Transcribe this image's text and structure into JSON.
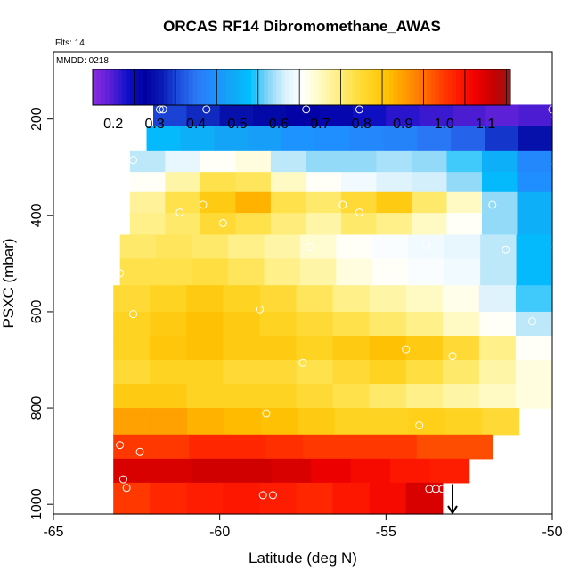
{
  "chart_data": {
    "type": "heatmap",
    "title": "ORCAS RF14 Dibromomethane_AWAS",
    "flights_note": "Flts: 14",
    "mmdd_note": "MMDD: 0218",
    "xlabel": "Latitude (deg N)",
    "ylabel": "PSXC (mbar)",
    "xlim": [
      -65,
      -50
    ],
    "ylim": [
      1020,
      60
    ],
    "x_ticks": [
      -65,
      -60,
      -55,
      -50
    ],
    "y_ticks": [
      200,
      400,
      600,
      800,
      1000
    ],
    "colorbar": {
      "range": [
        0.15,
        1.16
      ],
      "ticks": [
        0.2,
        0.3,
        0.4,
        0.5,
        0.6,
        0.7,
        0.8,
        0.9,
        1.0,
        1.1
      ],
      "colors": [
        "#8a2be2",
        "#5a1fd6",
        "#1010c8",
        "#0000a0",
        "#0a1cb4",
        "#1f4fe0",
        "#2a7af5",
        "#1e90ff",
        "#12a8f5",
        "#00bfff",
        "#7fd3f7",
        "#d8f1fb",
        "#ffffff",
        "#fffbc8",
        "#fff08a",
        "#ffe14a",
        "#ffd21e",
        "#ffbf00",
        "#ff9a00",
        "#ff7000",
        "#ff4000",
        "#ff1a00",
        "#f00000",
        "#c80000",
        "#a01515"
      ]
    },
    "bands": [
      {
        "p_top": 170,
        "p_bot": 215,
        "lat_start": -62.0,
        "lat_end": -50.0,
        "v": [
          0.35,
          0.33,
          0.3,
          0.29,
          0.27,
          0.26,
          0.24,
          0.22,
          0.21,
          0.2,
          0.19,
          0.2
        ]
      },
      {
        "p_top": 215,
        "p_bot": 265,
        "lat_start": -62.2,
        "lat_end": -50.0,
        "v": [
          0.52,
          0.5,
          0.48,
          0.47,
          0.45,
          0.44,
          0.43,
          0.42,
          0.4,
          0.38,
          0.34,
          0.3
        ]
      },
      {
        "p_top": 265,
        "p_bot": 310,
        "lat_start": -62.7,
        "lat_end": -50.0,
        "v": [
          0.6,
          0.63,
          0.66,
          0.68,
          0.6,
          0.58,
          0.58,
          0.59,
          0.58,
          0.55,
          0.5,
          0.43
        ]
      },
      {
        "p_top": 310,
        "p_bot": 350,
        "lat_start": -62.7,
        "lat_end": -50.0,
        "v": [
          0.66,
          0.72,
          0.78,
          0.77,
          0.7,
          0.66,
          0.64,
          0.62,
          0.61,
          0.58,
          0.52,
          0.44
        ]
      },
      {
        "p_top": 350,
        "p_bot": 395,
        "lat_start": -62.7,
        "lat_end": -50.0,
        "v": [
          0.73,
          0.78,
          0.84,
          0.88,
          0.78,
          0.76,
          0.8,
          0.84,
          0.76,
          0.7,
          0.58,
          0.5
        ]
      },
      {
        "p_top": 395,
        "p_bot": 440,
        "lat_start": -62.7,
        "lat_end": -50.0,
        "v": [
          0.74,
          0.76,
          0.8,
          0.78,
          0.75,
          0.72,
          0.76,
          0.74,
          0.7,
          0.66,
          0.58,
          0.5
        ]
      },
      {
        "p_top": 440,
        "p_bot": 490,
        "lat_start": -63.0,
        "lat_end": -50.0,
        "v": [
          0.76,
          0.77,
          0.76,
          0.74,
          0.72,
          0.69,
          0.66,
          0.65,
          0.64,
          0.63,
          0.6,
          0.52
        ]
      },
      {
        "p_top": 490,
        "p_bot": 545,
        "lat_start": -63.0,
        "lat_end": -50.0,
        "v": [
          0.78,
          0.78,
          0.79,
          0.77,
          0.74,
          0.72,
          0.68,
          0.66,
          0.65,
          0.64,
          0.6,
          0.52
        ]
      },
      {
        "p_top": 545,
        "p_bot": 600,
        "lat_start": -63.2,
        "lat_end": -50.0,
        "v": [
          0.8,
          0.82,
          0.84,
          0.82,
          0.8,
          0.77,
          0.74,
          0.72,
          0.7,
          0.67,
          0.62,
          0.55
        ]
      },
      {
        "p_top": 600,
        "p_bot": 650,
        "lat_start": -63.2,
        "lat_end": -50.0,
        "v": [
          0.82,
          0.84,
          0.86,
          0.84,
          0.82,
          0.8,
          0.78,
          0.76,
          0.74,
          0.7,
          0.66,
          0.6
        ]
      },
      {
        "p_top": 650,
        "p_bot": 700,
        "lat_start": -63.2,
        "lat_end": -50.0,
        "v": [
          0.82,
          0.85,
          0.86,
          0.84,
          0.84,
          0.82,
          0.84,
          0.86,
          0.84,
          0.8,
          0.74,
          0.66
        ]
      },
      {
        "p_top": 700,
        "p_bot": 750,
        "lat_start": -63.2,
        "lat_end": -50.0,
        "v": [
          0.8,
          0.82,
          0.82,
          0.8,
          0.8,
          0.78,
          0.8,
          0.82,
          0.79,
          0.76,
          0.72,
          0.68
        ]
      },
      {
        "p_top": 750,
        "p_bot": 800,
        "lat_start": -63.2,
        "lat_end": -50.0,
        "v": [
          0.84,
          0.84,
          0.82,
          0.82,
          0.82,
          0.8,
          0.78,
          0.76,
          0.74,
          0.72,
          0.7,
          0.68
        ]
      },
      {
        "p_top": 800,
        "p_bot": 855,
        "lat_start": -63.2,
        "lat_end": -51.0,
        "v": [
          0.9,
          0.9,
          0.88,
          0.87,
          0.86,
          0.84,
          0.82,
          0.82,
          0.83,
          0.82,
          0.8
        ]
      },
      {
        "p_top": 855,
        "p_bot": 905,
        "lat_start": -63.2,
        "lat_end": -51.8,
        "v": [
          1.0,
          1.0,
          1.02,
          1.02,
          1.01,
          1.0,
          1.0,
          1.0,
          0.98,
          0.98
        ]
      },
      {
        "p_top": 905,
        "p_bot": 955,
        "lat_start": -63.2,
        "lat_end": -52.5,
        "v": [
          1.1,
          1.1,
          1.11,
          1.11,
          1.1,
          1.08,
          1.06,
          1.04,
          1.03
        ]
      },
      {
        "p_top": 955,
        "p_bot": 1020,
        "lat_start": -63.2,
        "lat_end": -53.3,
        "v": [
          1.0,
          1.02,
          1.03,
          1.04,
          1.03,
          1.02,
          1.04,
          1.06,
          1.1
        ]
      }
    ],
    "samples": [
      {
        "lat": -61.8,
        "p": 180
      },
      {
        "lat": -61.7,
        "p": 180
      },
      {
        "lat": -60.4,
        "p": 180
      },
      {
        "lat": -57.4,
        "p": 180
      },
      {
        "lat": -55.8,
        "p": 180
      },
      {
        "lat": -50.0,
        "p": 180
      },
      {
        "lat": -49.9,
        "p": 195
      },
      {
        "lat": -62.6,
        "p": 285
      },
      {
        "lat": -49.9,
        "p": 293
      },
      {
        "lat": -60.5,
        "p": 378
      },
      {
        "lat": -56.3,
        "p": 378
      },
      {
        "lat": -51.8,
        "p": 378
      },
      {
        "lat": -61.2,
        "p": 394
      },
      {
        "lat": -55.8,
        "p": 394
      },
      {
        "lat": -59.9,
        "p": 416
      },
      {
        "lat": -53.8,
        "p": 460
      },
      {
        "lat": -57.3,
        "p": 466
      },
      {
        "lat": -51.4,
        "p": 471
      },
      {
        "lat": -49.9,
        "p": 465
      },
      {
        "lat": -63.0,
        "p": 520
      },
      {
        "lat": -54.8,
        "p": 530
      },
      {
        "lat": -58.8,
        "p": 595
      },
      {
        "lat": -62.6,
        "p": 605
      },
      {
        "lat": -50.6,
        "p": 620
      },
      {
        "lat": -54.4,
        "p": 678
      },
      {
        "lat": -53.0,
        "p": 692
      },
      {
        "lat": -57.5,
        "p": 706
      },
      {
        "lat": -49.9,
        "p": 773
      },
      {
        "lat": -58.6,
        "p": 811
      },
      {
        "lat": -54.0,
        "p": 836
      },
      {
        "lat": -63.0,
        "p": 877
      },
      {
        "lat": -62.4,
        "p": 891
      },
      {
        "lat": -62.9,
        "p": 948
      },
      {
        "lat": -62.8,
        "p": 966
      },
      {
        "lat": -53.7,
        "p": 968
      },
      {
        "lat": -53.5,
        "p": 968
      },
      {
        "lat": -53.3,
        "p": 968
      },
      {
        "lat": -58.7,
        "p": 981
      },
      {
        "lat": -58.4,
        "p": 981
      }
    ],
    "arrow": {
      "lat": -53.0,
      "p_start": 958,
      "p_end": 1018
    }
  }
}
